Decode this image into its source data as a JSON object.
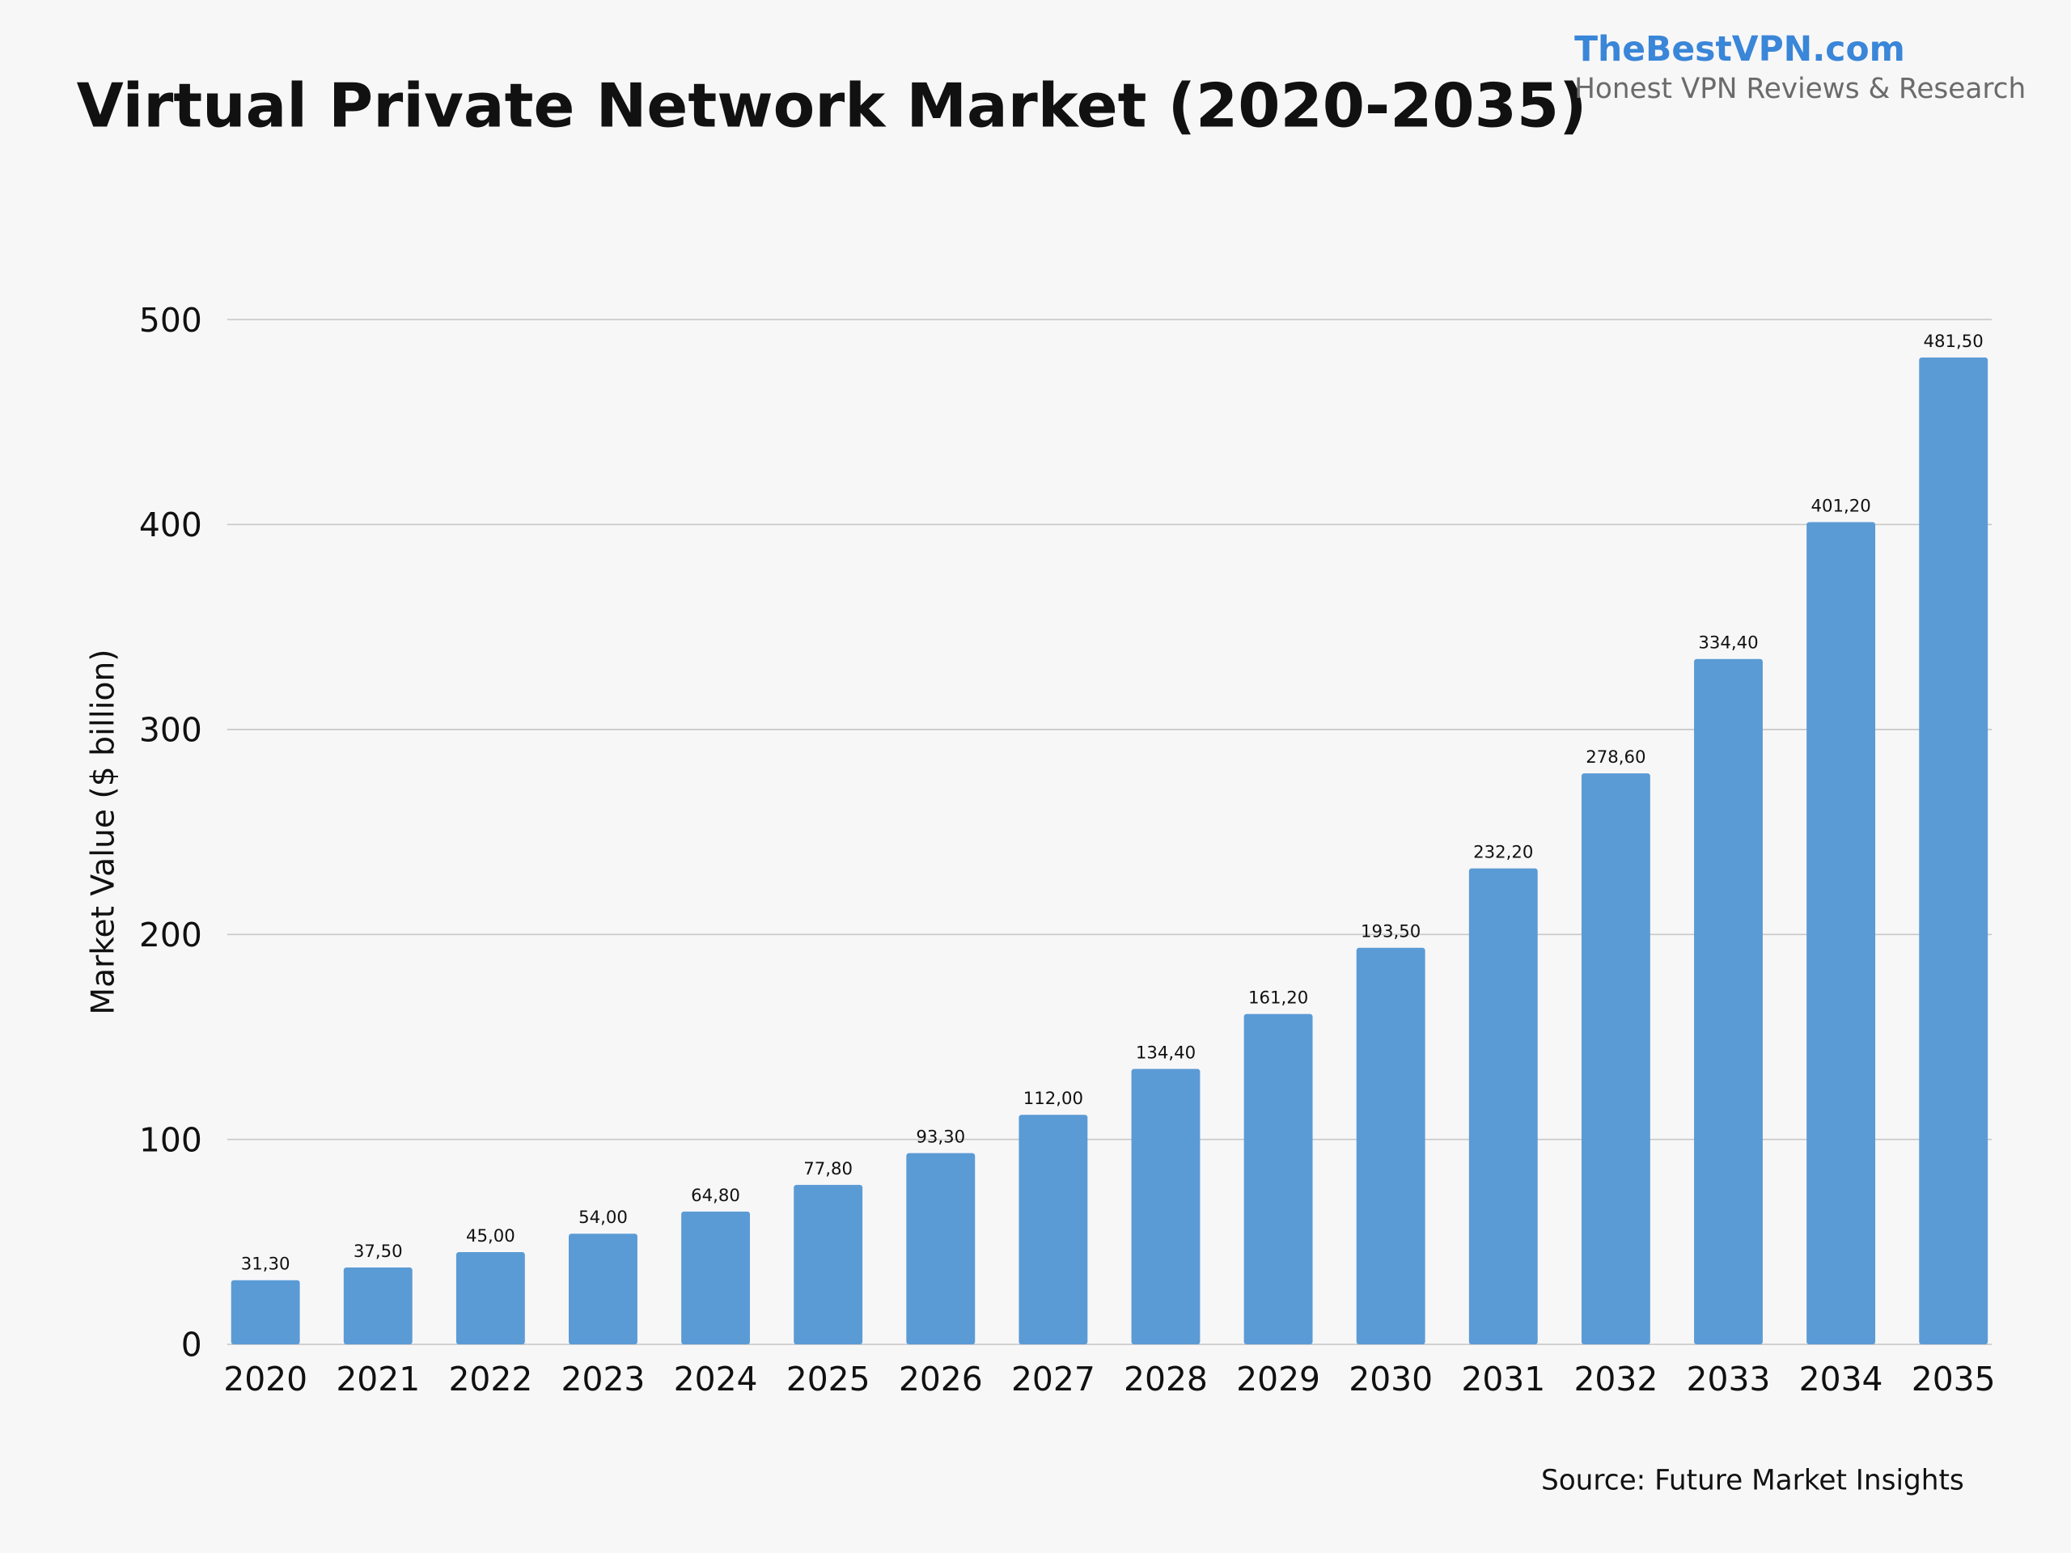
{
  "chart_data": {
    "type": "bar",
    "title": "Virtual Private Network Market (2020-2035)",
    "brand": "TheBestVPN.com",
    "brand_tagline": "Honest VPN Reviews & Research",
    "source": "Source: Future Market Insights",
    "y_label": "Market Value ($ billion)",
    "categories": [
      "2020",
      "2021",
      "2022",
      "2023",
      "2024",
      "2025",
      "2026",
      "2027",
      "2028",
      "2029",
      "2030",
      "2031",
      "2032",
      "2033",
      "2034",
      "2035"
    ],
    "values": [
      31.3,
      37.5,
      45.0,
      54.0,
      64.8,
      77.8,
      93.3,
      112.0,
      134.4,
      161.2,
      193.5,
      232.2,
      278.6,
      334.4,
      401.2,
      481.5
    ],
    "value_labels": [
      "31,30",
      "37,50",
      "45,00",
      "54,00",
      "64,80",
      "77,80",
      "93,30",
      "112,00",
      "134,40",
      "161,20",
      "193,50",
      "232,20",
      "278,60",
      "334,40",
      "401,20",
      "481,50"
    ],
    "color": "#5b9bd5",
    "ylim": [
      0,
      500
    ],
    "yticks": [
      0,
      100,
      200,
      300,
      400,
      500
    ],
    "grid": true
  }
}
